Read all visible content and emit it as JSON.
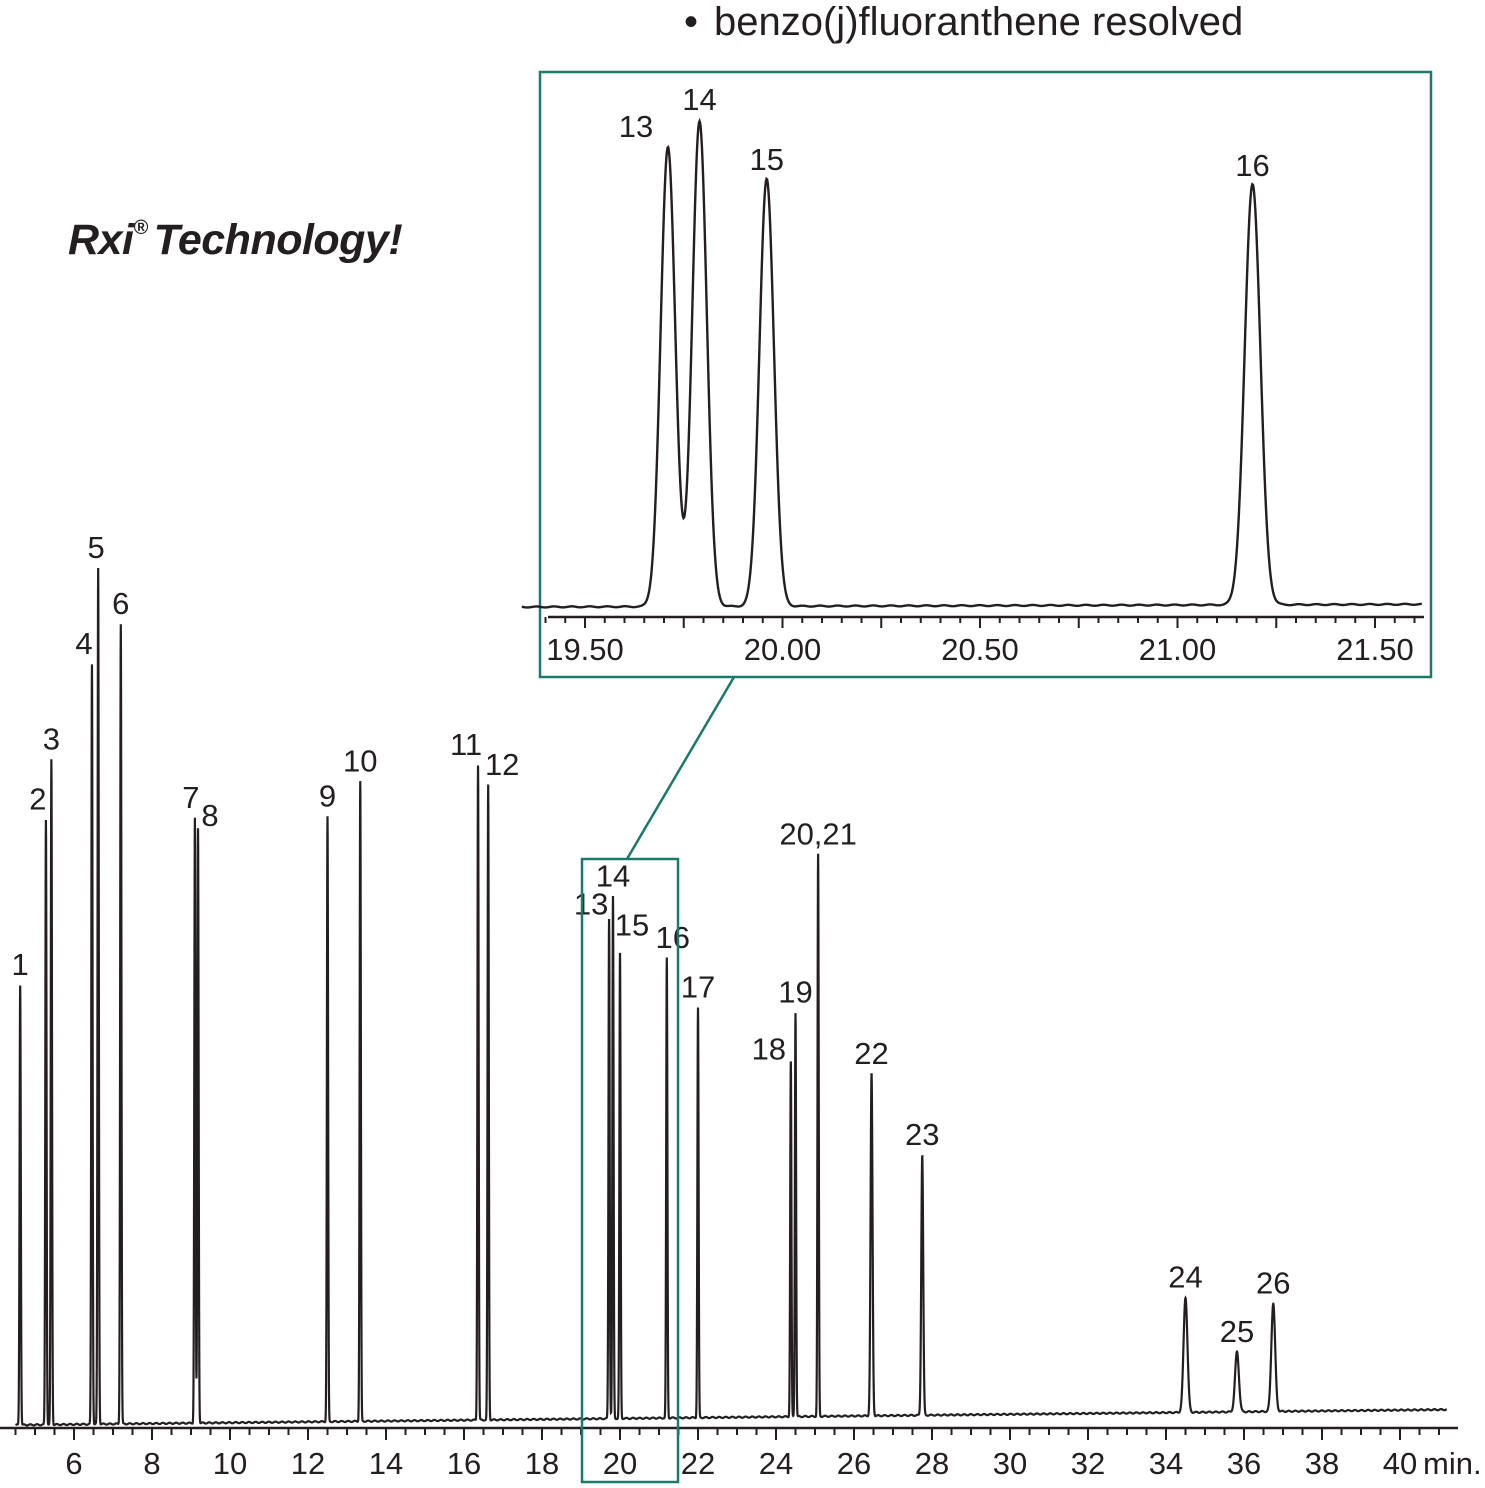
{
  "annotation": {
    "bullet": "•",
    "text": "benzo(j)fluoranthene resolved"
  },
  "headline": {
    "text": "Technology!",
    "brand": "Rxi",
    "reg_mark": "®"
  },
  "colors": {
    "trace": "#231f20",
    "inset_frame": "#1b7a6a"
  },
  "chart_data": [
    {
      "type": "line",
      "title": "",
      "xlabel": "min.",
      "ylabel": "",
      "xlim": [
        4.5,
        41.2
      ],
      "x_ticks": [
        6,
        8,
        10,
        12,
        14,
        16,
        18,
        20,
        22,
        24,
        26,
        28,
        30,
        32,
        34,
        36,
        38,
        40
      ],
      "x_tick_labels": [
        "6",
        "8",
        "10",
        "12",
        "14",
        "16",
        "18",
        "20",
        "22",
        "24",
        "26",
        "28",
        "30",
        "32",
        "34",
        "36",
        "38",
        "40"
      ],
      "x_unit_label": "min.",
      "zoom_region": [
        19.2,
        21.6
      ],
      "peaks": [
        {
          "label": "1",
          "x": 4.62,
          "height": 440
        },
        {
          "label": "2",
          "x": 5.28,
          "height": 605
        },
        {
          "label": "3",
          "x": 5.42,
          "height": 665
        },
        {
          "label": "4",
          "x": 6.46,
          "height": 760
        },
        {
          "label": "5",
          "x": 6.62,
          "height": 856
        },
        {
          "label": "6",
          "x": 7.2,
          "height": 800
        },
        {
          "label": "7",
          "x": 9.1,
          "height": 605
        },
        {
          "label": "8",
          "x": 9.18,
          "height": 595
        },
        {
          "label": "9",
          "x": 12.5,
          "height": 605
        },
        {
          "label": "10",
          "x": 13.34,
          "height": 640
        },
        {
          "label": "11",
          "x": 16.36,
          "height": 655
        },
        {
          "label": "12",
          "x": 16.62,
          "height": 635
        },
        {
          "label": "13",
          "x": 19.72,
          "height": 500
        },
        {
          "label": "14",
          "x": 19.82,
          "height": 522
        },
        {
          "label": "15",
          "x": 20.0,
          "height": 465
        },
        {
          "label": "16",
          "x": 21.2,
          "height": 460
        },
        {
          "label": "17",
          "x": 22.0,
          "height": 410
        },
        {
          "label": "18",
          "x": 24.38,
          "height": 355
        },
        {
          "label": "19",
          "x": 24.5,
          "height": 404
        },
        {
          "label": "20,21",
          "x": 25.08,
          "height": 562
        },
        {
          "label": "22",
          "x": 26.45,
          "height": 342
        },
        {
          "label": "23",
          "x": 27.75,
          "height": 260
        },
        {
          "label": "24",
          "x": 34.5,
          "height": 115
        },
        {
          "label": "25",
          "x": 35.82,
          "height": 60
        },
        {
          "label": "26",
          "x": 36.75,
          "height": 108
        }
      ]
    },
    {
      "type": "line",
      "title": "",
      "xlabel": "",
      "ylabel": "",
      "xlim": [
        19.5,
        21.62
      ],
      "x_ticks": [
        19.5,
        20.0,
        20.5,
        21.0,
        21.5
      ],
      "x_tick_labels": [
        "19.50",
        "20.00",
        "20.50",
        "21.00",
        "21.50"
      ],
      "peaks": [
        {
          "label": "13",
          "x": 19.71,
          "height": 460
        },
        {
          "label": "14",
          "x": 19.79,
          "height": 485
        },
        {
          "label": "15",
          "x": 19.96,
          "height": 427
        },
        {
          "label": "16",
          "x": 21.19,
          "height": 421
        }
      ]
    }
  ]
}
